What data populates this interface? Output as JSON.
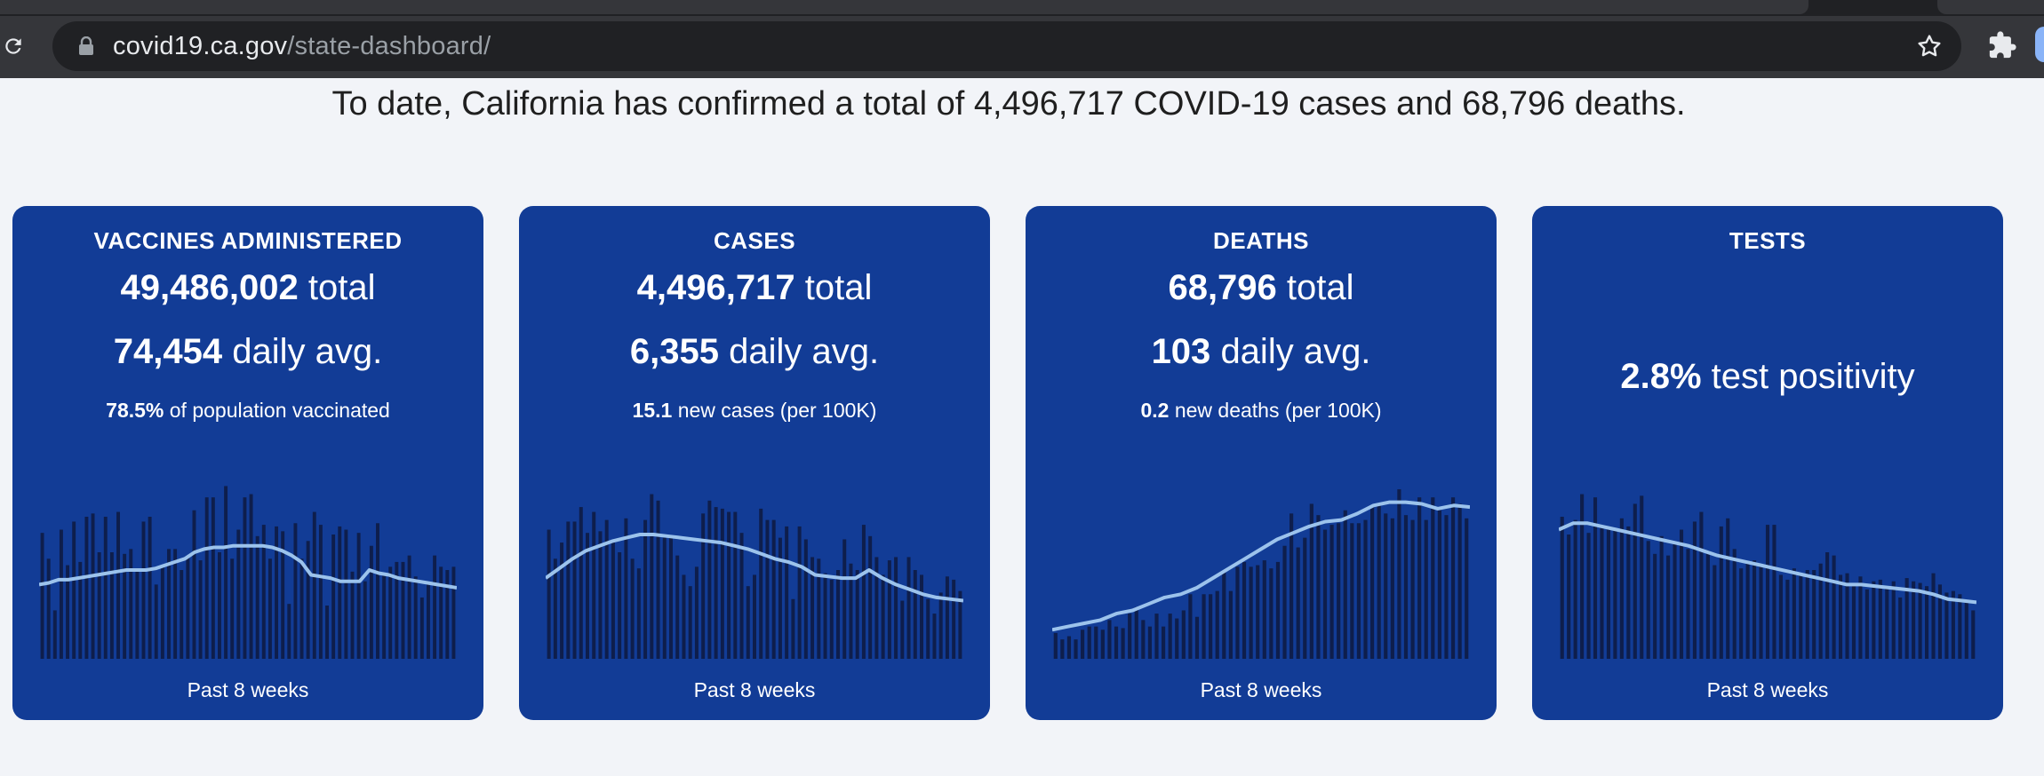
{
  "browser": {
    "url_domain": "covid19.ca.gov",
    "url_path": "/state-dashboard/",
    "icons": [
      "reload-icon",
      "lock-icon",
      "star-icon",
      "extensions-icon"
    ]
  },
  "headline": {
    "prefix": "To date, California has confirmed a total of ",
    "cases": "4,496,717",
    "middle": " COVID-19 cases and ",
    "deaths": "68,796",
    "suffix": " deaths."
  },
  "colors": {
    "card_bg": "#123c96",
    "bar": "#0e1e4c",
    "line": "#9cc3ec"
  },
  "cards": [
    {
      "title": "VACCINES ADMINISTERED",
      "total_value": "49,486,002",
      "total_label": "total",
      "avg_value": "74,454",
      "avg_label": "daily avg.",
      "note_value": "78.5%",
      "note_label": "of population vaccinated",
      "footer": "Past 8 weeks"
    },
    {
      "title": "CASES",
      "total_value": "4,496,717",
      "total_label": "total",
      "avg_value": "6,355",
      "avg_label": "daily avg.",
      "note_value": "15.1",
      "note_label": "new cases (per 100K)",
      "footer": "Past 8 weeks"
    },
    {
      "title": "DEATHS",
      "total_value": "68,796",
      "total_label": "total",
      "avg_value": "103",
      "avg_label": "daily avg.",
      "note_value": "0.2",
      "note_label": "new deaths (per 100K)",
      "footer": "Past 8 weeks"
    },
    {
      "title": "TESTS",
      "big_value": "2.8%",
      "big_label": "test positivity",
      "footer": "Past 8 weeks"
    }
  ],
  "chart_data": [
    {
      "type": "bar",
      "title": "VACCINES ADMINISTERED",
      "xlabel": "Past 8 weeks",
      "bars": [
        0.78,
        0.62,
        0.3,
        0.8,
        0.58,
        0.85,
        0.6,
        0.88,
        0.9,
        0.66,
        0.88,
        0.66,
        0.91,
        0.65,
        0.68,
        0.54,
        0.85,
        0.88,
        0.46,
        0.57,
        0.68,
        0.68,
        0.55,
        0.64,
        0.92,
        0.61,
        1.0,
        1.0,
        0.66,
        1.07,
        0.62,
        0.8,
        1.0,
        1.02,
        0.76,
        0.83,
        0.62,
        0.82,
        0.79,
        0.34,
        0.84,
        0.62,
        0.73,
        0.91,
        0.83,
        0.33,
        0.77,
        0.82,
        0.8,
        0.54,
        0.78,
        0.48,
        0.7,
        0.84,
        0.52,
        0.57,
        0.6,
        0.6,
        0.64,
        0.51,
        0.38,
        0.47,
        0.64,
        0.57,
        0.55,
        0.57
      ],
      "trend": [
        0.46,
        0.47,
        0.49,
        0.49,
        0.5,
        0.51,
        0.52,
        0.53,
        0.54,
        0.55,
        0.55,
        0.55,
        0.56,
        0.58,
        0.6,
        0.62,
        0.66,
        0.68,
        0.69,
        0.69,
        0.7,
        0.7,
        0.7,
        0.7,
        0.69,
        0.67,
        0.64,
        0.6,
        0.52,
        0.51,
        0.5,
        0.48,
        0.48,
        0.48,
        0.55,
        0.53,
        0.52,
        0.5,
        0.49,
        0.48,
        0.47,
        0.46,
        0.45,
        0.44
      ],
      "ylim": [
        0,
        1.1
      ]
    },
    {
      "type": "bar",
      "title": "CASES",
      "xlabel": "Past 8 weeks",
      "bars": [
        0.8,
        0.62,
        0.72,
        0.85,
        0.85,
        0.94,
        0.78,
        0.91,
        0.79,
        0.86,
        0.72,
        0.66,
        0.87,
        0.62,
        0.56,
        0.86,
        1.02,
        0.98,
        0.75,
        0.75,
        0.64,
        0.52,
        0.45,
        0.57,
        0.9,
        0.98,
        0.94,
        0.93,
        0.91,
        0.91,
        0.78,
        0.45,
        0.52,
        0.93,
        0.86,
        0.86,
        0.75,
        0.82,
        0.37,
        0.82,
        0.74,
        0.63,
        0.62,
        0.53,
        0.49,
        0.55,
        0.74,
        0.59,
        0.55,
        0.83,
        0.76,
        0.63,
        0.52,
        0.61,
        0.63,
        0.36,
        0.63,
        0.55,
        0.52,
        0.37,
        0.28,
        0.41,
        0.51,
        0.49,
        0.42
      ],
      "trend": [
        0.5,
        0.56,
        0.62,
        0.67,
        0.7,
        0.73,
        0.75,
        0.77,
        0.77,
        0.76,
        0.75,
        0.74,
        0.73,
        0.72,
        0.7,
        0.68,
        0.65,
        0.62,
        0.6,
        0.57,
        0.52,
        0.51,
        0.5,
        0.5,
        0.55,
        0.5,
        0.46,
        0.43,
        0.4,
        0.38,
        0.37,
        0.36
      ],
      "ylim": [
        0,
        1.1
      ]
    },
    {
      "type": "bar",
      "title": "DEATHS",
      "xlabel": "Past 8 weeks",
      "bars": [
        0.16,
        0.12,
        0.14,
        0.12,
        0.18,
        0.2,
        0.2,
        0.18,
        0.24,
        0.2,
        0.19,
        0.28,
        0.32,
        0.24,
        0.2,
        0.28,
        0.2,
        0.28,
        0.25,
        0.3,
        0.4,
        0.26,
        0.4,
        0.4,
        0.42,
        0.54,
        0.42,
        0.57,
        0.6,
        0.57,
        0.58,
        0.61,
        0.56,
        0.6,
        0.7,
        0.9,
        0.69,
        0.75,
        0.96,
        0.89,
        0.8,
        0.83,
        0.84,
        0.92,
        0.84,
        0.84,
        0.86,
        0.95,
        0.96,
        0.9,
        0.87,
        1.05,
        0.89,
        0.86,
        1.0,
        0.86,
        1.0,
        0.92,
        0.89,
        1.0,
        0.96,
        0.87
      ],
      "trend": [
        0.18,
        0.2,
        0.22,
        0.24,
        0.28,
        0.3,
        0.34,
        0.38,
        0.4,
        0.44,
        0.5,
        0.56,
        0.62,
        0.68,
        0.74,
        0.78,
        0.82,
        0.85,
        0.86,
        0.9,
        0.95,
        0.97,
        0.97,
        0.96,
        0.93,
        0.95,
        0.94
      ],
      "ylim": [
        0,
        1.1
      ]
    },
    {
      "type": "bar",
      "title": "TESTS",
      "xlabel": "Past 8 weeks",
      "bars": [
        0.88,
        0.77,
        0.86,
        1.02,
        0.78,
        1.0,
        0.82,
        0.8,
        0.81,
        0.87,
        0.82,
        0.96,
        1.01,
        0.73,
        0.65,
        0.76,
        0.64,
        0.71,
        0.8,
        0.68,
        0.85,
        0.91,
        0.67,
        0.58,
        0.82,
        0.87,
        0.68,
        0.56,
        0.59,
        0.61,
        0.58,
        0.83,
        0.83,
        0.52,
        0.49,
        0.56,
        0.53,
        0.55,
        0.55,
        0.59,
        0.66,
        0.64,
        0.52,
        0.53,
        0.46,
        0.51,
        0.43,
        0.48,
        0.49,
        0.44,
        0.48,
        0.38,
        0.5,
        0.48,
        0.47,
        0.45,
        0.53,
        0.46,
        0.41,
        0.42,
        0.4,
        0.36,
        0.3
      ],
      "trend": [
        0.8,
        0.84,
        0.84,
        0.82,
        0.8,
        0.78,
        0.76,
        0.74,
        0.72,
        0.7,
        0.67,
        0.64,
        0.62,
        0.6,
        0.58,
        0.56,
        0.54,
        0.52,
        0.5,
        0.48,
        0.46,
        0.46,
        0.45,
        0.44,
        0.43,
        0.42,
        0.4,
        0.37,
        0.36,
        0.35
      ],
      "ylim": [
        0,
        1.1
      ]
    }
  ]
}
